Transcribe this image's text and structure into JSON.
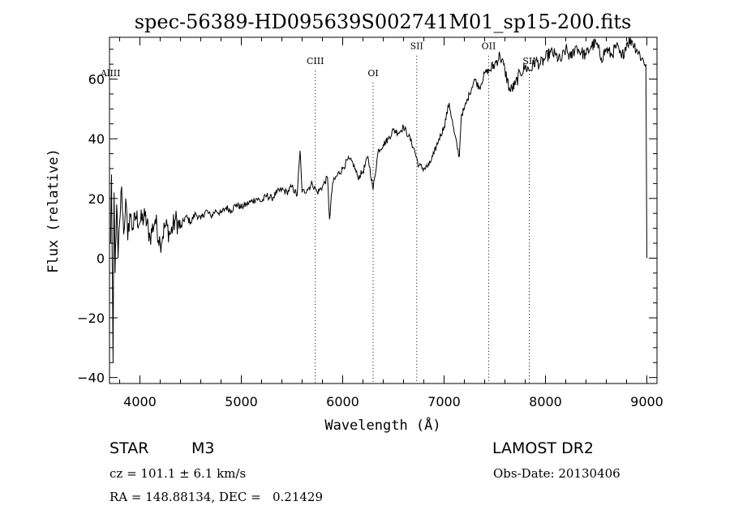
{
  "chart_data": {
    "type": "line",
    "title": "spec-56389-HD095639S002741M01_sp15-200.fits",
    "xlabel": "Wavelength (Å)",
    "ylabel": "Flux (relative)",
    "xlim": [
      3700,
      9100
    ],
    "ylim": [
      -42,
      74
    ],
    "x_ticks": [
      4000,
      5000,
      6000,
      7000,
      8000,
      9000
    ],
    "y_ticks": [
      -40,
      -20,
      0,
      20,
      40,
      60
    ],
    "grid": false,
    "series": [
      {
        "x": [
          3710,
          3720,
          3735,
          3745,
          3755,
          3770,
          3785,
          3800,
          3820,
          3840,
          3860,
          3880,
          3900,
          3930,
          3960,
          4000,
          4050,
          4100,
          4150,
          4200,
          4250,
          4300,
          4350,
          4400,
          4450,
          4500,
          4550,
          4600,
          4650,
          4700,
          4750,
          4800,
          4850,
          4900,
          4950,
          5000,
          5050,
          5100,
          5150,
          5200,
          5250,
          5300,
          5350,
          5400,
          5450,
          5500,
          5550,
          5580,
          5600,
          5650,
          5700,
          5750,
          5800,
          5850,
          5870,
          5900,
          5950,
          6000,
          6050,
          6100,
          6150,
          6200,
          6250,
          6300,
          6350,
          6400,
          6450,
          6500,
          6550,
          6600,
          6650,
          6700,
          6750,
          6800,
          6850,
          6900,
          6950,
          7000,
          7050,
          7100,
          7150,
          7170,
          7200,
          7250,
          7300,
          7350,
          7400,
          7450,
          7500,
          7550,
          7600,
          7650,
          7700,
          7750,
          7800,
          7850,
          7900,
          7950,
          8000,
          8050,
          8100,
          8150,
          8200,
          8250,
          8300,
          8350,
          8400,
          8450,
          8500,
          8550,
          8600,
          8650,
          8700,
          8750,
          8800,
          8850,
          8900,
          8950,
          8990,
          9000
        ],
        "y": [
          5,
          28,
          -35,
          22,
          -5,
          18,
          0,
          12,
          24,
          8,
          20,
          6,
          15,
          10,
          14,
          12,
          14,
          7,
          13,
          5,
          11,
          8,
          13,
          10,
          14,
          12,
          15,
          13,
          16,
          14,
          16,
          15,
          17,
          16,
          18,
          17,
          18,
          19,
          20,
          19,
          21,
          20,
          22,
          23,
          22,
          24,
          21,
          36,
          22,
          23,
          25,
          22,
          24,
          27,
          13,
          25,
          28,
          30,
          33,
          32,
          27,
          29,
          34,
          23,
          36,
          38,
          40,
          43,
          42,
          44,
          41,
          37,
          31,
          30,
          31,
          35,
          40,
          44,
          52,
          42,
          34,
          48,
          50,
          55,
          60,
          57,
          62,
          63,
          65,
          68,
          63,
          56,
          58,
          62,
          64,
          63,
          66,
          65,
          67,
          69,
          68,
          66,
          70,
          67,
          71,
          69,
          68,
          71,
          72,
          67,
          70,
          68,
          71,
          67,
          72,
          73,
          70,
          67,
          65,
          0
        ]
      }
    ],
    "line_markers": [
      {
        "label": "AlIII",
        "x": 3710,
        "label_y": 61
      },
      {
        "label": "CIII",
        "x": 5730,
        "label_y": 65
      },
      {
        "label": "OI",
        "x": 6300,
        "label_y": 61
      },
      {
        "label": "SII",
        "x": 6730,
        "label_y": 70
      },
      {
        "label": "OII",
        "x": 7440,
        "label_y": 70
      },
      {
        "label": "SII",
        "x": 7840,
        "label_y": 65
      }
    ]
  },
  "info": {
    "object": "STAR",
    "subclass": "M3",
    "survey": "LAMOST DR2",
    "cz": "cz = 101.1 ± 6.1 km/s",
    "obs_date": "Obs-Date: 20130406",
    "coords": "RA = 148.88134, DEC =   0.21429"
  }
}
